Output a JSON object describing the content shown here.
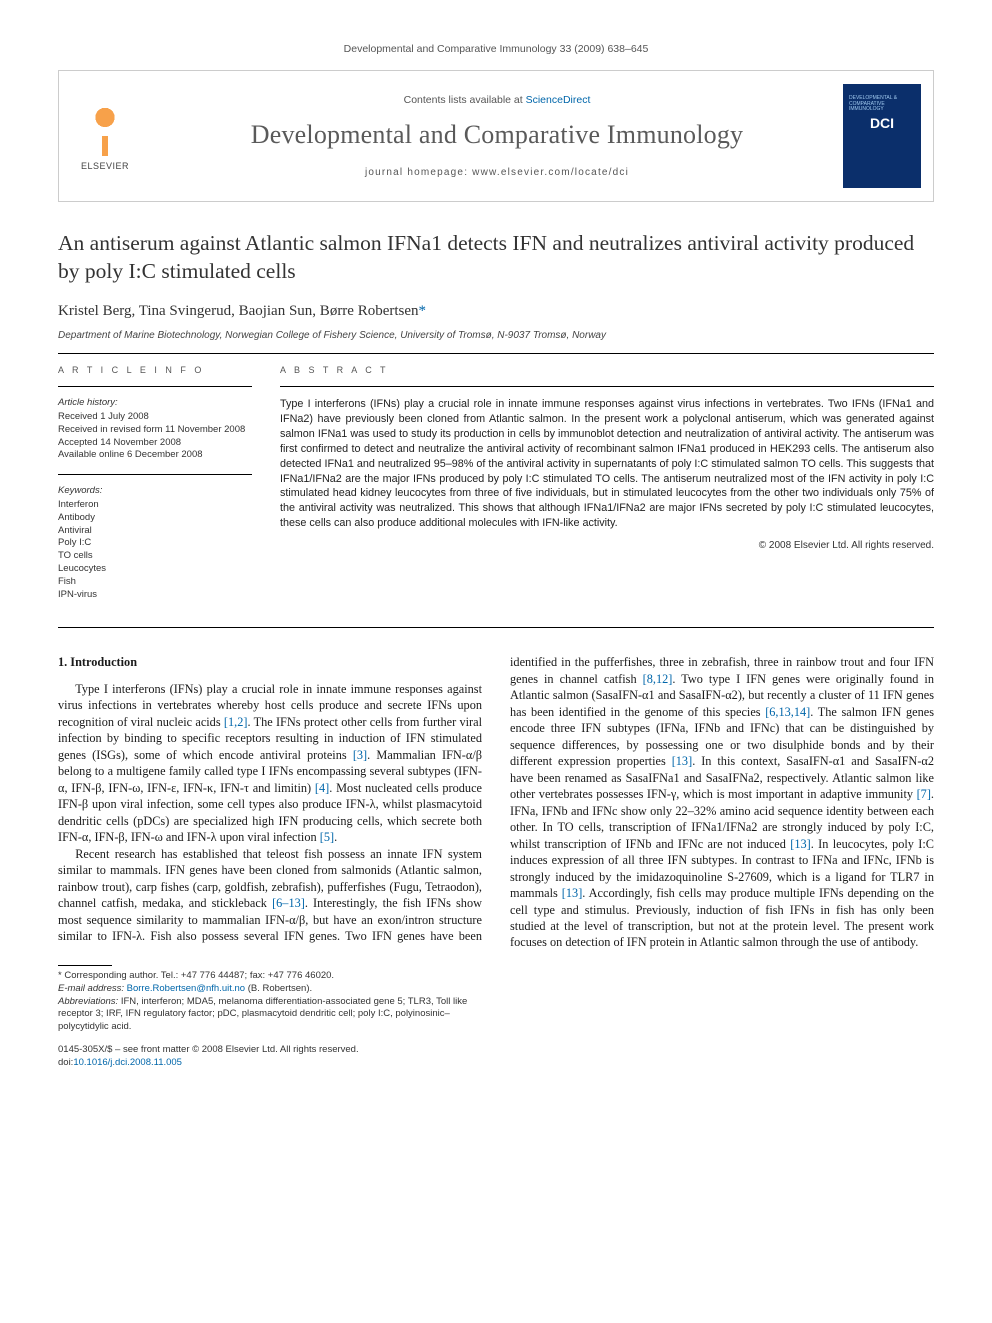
{
  "runningHead": "Developmental and Comparative Immunology 33 (2009) 638–645",
  "banner": {
    "publisher": "ELSEVIER",
    "contentsPrefix": "Contents lists available at ",
    "contentsLink": "ScienceDirect",
    "journalName": "Developmental and Comparative Immunology",
    "homepagePrefix": "journal homepage: ",
    "homepage": "www.elsevier.com/locate/dci",
    "coverAbbr": "DCI",
    "coverTopText": "DEVELOPMENTAL & COMPARATIVE IMMUNOLOGY"
  },
  "title": "An antiserum against Atlantic salmon IFNa1 detects IFN and neutralizes antiviral activity produced by poly I:C stimulated cells",
  "authors": "Kristel Berg, Tina Svingerud, Baojian Sun, Børre Robertsen",
  "corrMark": "*",
  "affiliation": "Department of Marine Biotechnology, Norwegian College of Fishery Science, University of Tromsø, N-9037 Tromsø, Norway",
  "info": {
    "headArticleInfo": "A R T I C L E   I N F O",
    "historyHead": "Article history:",
    "history": [
      "Received 1 July 2008",
      "Received in revised form 11 November 2008",
      "Accepted 14 November 2008",
      "Available online 6 December 2008"
    ],
    "keywordsHead": "Keywords:",
    "keywords": [
      "Interferon",
      "Antibody",
      "Antiviral",
      "Poly I:C",
      "TO cells",
      "Leucocytes",
      "Fish",
      "IPN-virus"
    ]
  },
  "abstract": {
    "head": "A B S T R A C T",
    "text": "Type I interferons (IFNs) play a crucial role in innate immune responses against virus infections in vertebrates. Two IFNs (IFNa1 and IFNa2) have previously been cloned from Atlantic salmon. In the present work a polyclonal antiserum, which was generated against salmon IFNa1 was used to study its production in cells by immunoblot detection and neutralization of antiviral activity. The antiserum was first confirmed to detect and neutralize the antiviral activity of recombinant salmon IFNa1 produced in HEK293 cells. The antiserum also detected IFNa1 and neutralized 95–98% of the antiviral activity in supernatants of poly I:C stimulated salmon TO cells. This suggests that IFNa1/IFNa2 are the major IFNs produced by poly I:C stimulated TO cells. The antiserum neutralized most of the IFN activity in poly I:C stimulated head kidney leucocytes from three of five individuals, but in stimulated leucocytes from the other two individuals only 75% of the antiviral activity was neutralized. This shows that although IFNa1/IFNa2 are major IFNs secreted by poly I:C stimulated leucocytes, these cells can also produce additional molecules with IFN-like activity.",
    "copyright": "© 2008 Elsevier Ltd. All rights reserved."
  },
  "section1": {
    "head": "1. Introduction",
    "p1": "Type I interferons (IFNs) play a crucial role in innate immune responses against virus infections in vertebrates whereby host cells produce and secrete IFNs upon recognition of viral nucleic acids [1,2]. The IFNs protect other cells from further viral infection by binding to specific receptors resulting in induction of IFN stimulated genes (ISGs), some of which encode antiviral proteins [3]. Mammalian IFN-α/β belong to a multigene family called type I IFNs encompassing several subtypes (IFN-α, IFN-β, IFN-ω, IFN-ε, IFN-κ, IFN-τ and limitin) [4]. Most nucleated cells produce IFN-β upon viral infection, some cell types also produce IFN-λ, whilst plasmacytoid dendritic cells (pDCs) are specialized high IFN producing cells, which secrete both IFN-α, IFN-β, IFN-ω and IFN-λ upon viral infection [5].",
    "p2": "Recent research has established that teleost fish possess an innate IFN system similar to mammals. IFN genes have been cloned from salmonids (Atlantic salmon, rainbow trout), carp fishes (carp, goldfish, zebrafish), pufferfishes (Fugu, Tetraodon), channel catfish, medaka, and stickleback [6–13]. Interestingly, the fish IFNs show most sequence similarity to mammalian IFN-α/β, but have an exon/intron structure similar to IFN-λ. Fish also possess several IFN genes. Two IFN genes have been identified in the pufferfishes, three in zebrafish, three in rainbow trout and four IFN genes in channel catfish [8,12]. Two type I IFN genes were originally found in Atlantic salmon (SasaIFN-α1 and SasaIFN-α2), but recently a cluster of 11 IFN genes has been identified in the genome of this species [6,13,14]. The salmon IFN genes encode three IFN subtypes (IFNa, IFNb and IFNc) that can be distinguished by sequence differences, by possessing one or two disulphide bonds and by their different expression properties [13]. In this context, SasaIFN-α1 and SasaIFN-α2 have been renamed as SasaIFNa1 and SasaIFNa2, respectively. Atlantic salmon like other vertebrates possesses IFN-γ, which is most important in adaptive immunity [7]. IFNa, IFNb and IFNc show only 22–32% amino acid sequence identity between each other. In TO cells, transcription of IFNa1/IFNa2 are strongly induced by poly I:C, whilst transcription of IFNb and IFNc are not induced [13]. In leucocytes, poly I:C induces expression of all three IFN subtypes. In contrast to IFNa and IFNc, IFNb is strongly induced by the imidazoquinoline S-27609, which is a ligand for TLR7 in mammals [13]. Accordingly, fish cells may produce multiple IFNs depending on the cell type and stimulus. Previously, induction of fish IFNs in fish has only been studied at the level of transcription, but not at the protein level. The present work focuses on detection of IFN protein in Atlantic salmon through the use of antibody."
  },
  "footnotes": {
    "corr": "* Corresponding author. Tel.: +47 776 44487; fax: +47 776 46020.",
    "emailLabel": "E-mail address: ",
    "email": "Borre.Robertsen@nfh.uit.no",
    "emailSuffix": " (B. Robertsen).",
    "abbrLabel": "Abbreviations: ",
    "abbr": "IFN, interferon; MDA5, melanoma differentiation-associated gene 5; TLR3, Toll like receptor 3; IRF, IFN regulatory factor; pDC, plasmacytoid dendritic cell; poly I:C, polyinosinic–polycytidylic acid."
  },
  "copyrightBlock": {
    "line1": "0145-305X/$ – see front matter © 2008 Elsevier Ltd. All rights reserved.",
    "doiPrefix": "doi:",
    "doi": "10.1016/j.dci.2008.11.005"
  },
  "colors": {
    "link": "#0066aa",
    "coverBg": "#0b2f6b",
    "logoOrange": "#f7a14a",
    "headerGray": "#5a5a5a",
    "textGray": "#555555",
    "bodyText": "#1a1a1a"
  },
  "typography": {
    "titleSize": 21.5,
    "journalNameSize": 26,
    "authorSize": 15,
    "bodySize": 12.3,
    "abstractSize": 10.8,
    "infoSize": 9.5,
    "footnoteSize": 9.5
  },
  "layout": {
    "pageWidth": 992,
    "pageHeight": 1323,
    "columns": 2,
    "columnGap": 28
  }
}
